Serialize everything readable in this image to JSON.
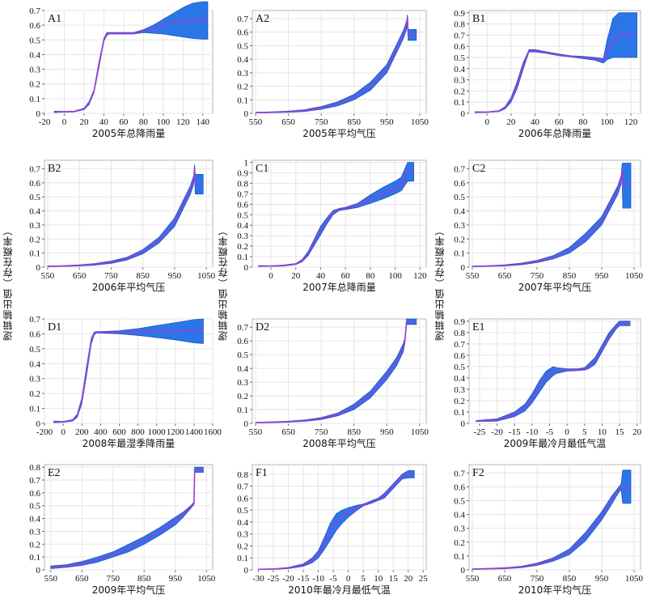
{
  "figure": {
    "y_axis_label": "逻辑输出值（存在概率）",
    "band_color": "#1f6fe8",
    "band_edge_color": "#1a56c4",
    "line_color": "#9a3fd6"
  },
  "chart_data": [
    {
      "panel": "A1",
      "type": "area",
      "xlabel": "2005年总降雨量",
      "xlim": [
        -20,
        150
      ],
      "ylim": [
        0,
        0.7
      ],
      "xticks": [
        -20,
        0,
        20,
        40,
        60,
        80,
        100,
        120,
        140
      ],
      "yticks": [
        0,
        0.1,
        0.2,
        0.3,
        0.4,
        0.5,
        0.6,
        0.7
      ],
      "x": [
        -10,
        0,
        10,
        20,
        25,
        30,
        35,
        40,
        43,
        45,
        50,
        60,
        70,
        80,
        90,
        100,
        110,
        120,
        130,
        140,
        145
      ],
      "mean": [
        0.01,
        0.01,
        0.012,
        0.03,
        0.07,
        0.15,
        0.33,
        0.5,
        0.54,
        0.545,
        0.545,
        0.545,
        0.545,
        0.56,
        0.58,
        0.6,
        0.615,
        0.625,
        0.635,
        0.64,
        0.64
      ],
      "lower": [
        0.005,
        0.008,
        0.01,
        0.025,
        0.06,
        0.14,
        0.31,
        0.49,
        0.53,
        0.54,
        0.54,
        0.54,
        0.54,
        0.55,
        0.545,
        0.54,
        0.53,
        0.52,
        0.51,
        0.505,
        0.505
      ],
      "upper": [
        0.015,
        0.013,
        0.015,
        0.035,
        0.08,
        0.16,
        0.35,
        0.51,
        0.55,
        0.55,
        0.55,
        0.55,
        0.55,
        0.57,
        0.6,
        0.64,
        0.68,
        0.72,
        0.75,
        0.76,
        0.76
      ]
    },
    {
      "panel": "A2",
      "type": "area",
      "xlabel": "2005年平均气压",
      "xlim": [
        540,
        1070
      ],
      "ylim": [
        0,
        0.76
      ],
      "xticks": [
        550,
        650,
        750,
        850,
        950,
        1050
      ],
      "yticks": [
        0,
        0.1,
        0.2,
        0.3,
        0.4,
        0.5,
        0.6,
        0.7
      ],
      "x": [
        550,
        600,
        650,
        700,
        750,
        800,
        850,
        900,
        950,
        1000,
        1010,
        1013,
        1015,
        1030,
        1040
      ],
      "mean": [
        0.005,
        0.008,
        0.012,
        0.02,
        0.04,
        0.07,
        0.12,
        0.2,
        0.33,
        0.58,
        0.65,
        0.7,
        0.58,
        0.58,
        0.58
      ],
      "lower": [
        0.003,
        0.005,
        0.008,
        0.014,
        0.03,
        0.055,
        0.1,
        0.17,
        0.3,
        0.55,
        0.62,
        0.66,
        0.54,
        0.54,
        0.54
      ],
      "upper": [
        0.007,
        0.011,
        0.016,
        0.027,
        0.05,
        0.085,
        0.14,
        0.23,
        0.36,
        0.61,
        0.68,
        0.73,
        0.62,
        0.62,
        0.62
      ]
    },
    {
      "panel": "B1",
      "type": "area",
      "xlabel": "2006年总降雨量",
      "xlim": [
        -15,
        128
      ],
      "ylim": [
        0,
        0.92
      ],
      "xticks": [
        0,
        20,
        40,
        60,
        80,
        100,
        120
      ],
      "yticks": [
        0,
        0.1,
        0.2,
        0.3,
        0.4,
        0.5,
        0.6,
        0.7,
        0.8,
        0.9
      ],
      "x": [
        -10,
        0,
        10,
        15,
        20,
        25,
        30,
        35,
        40,
        50,
        60,
        70,
        80,
        90,
        97,
        100,
        105,
        110,
        120,
        125
      ],
      "mean": [
        0.01,
        0.01,
        0.02,
        0.05,
        0.12,
        0.25,
        0.42,
        0.56,
        0.56,
        0.54,
        0.52,
        0.51,
        0.5,
        0.49,
        0.47,
        0.55,
        0.65,
        0.7,
        0.7,
        0.7
      ],
      "lower": [
        0.005,
        0.008,
        0.015,
        0.04,
        0.1,
        0.22,
        0.39,
        0.55,
        0.55,
        0.535,
        0.515,
        0.505,
        0.49,
        0.475,
        0.45,
        0.48,
        0.5,
        0.5,
        0.5,
        0.5
      ],
      "upper": [
        0.015,
        0.012,
        0.025,
        0.06,
        0.14,
        0.28,
        0.45,
        0.57,
        0.57,
        0.55,
        0.53,
        0.515,
        0.51,
        0.5,
        0.49,
        0.65,
        0.85,
        0.9,
        0.9,
        0.9
      ]
    },
    {
      "panel": "B2",
      "type": "area",
      "xlabel": "2006年平均气压",
      "xlim": [
        540,
        1070
      ],
      "ylim": [
        0,
        0.76
      ],
      "xticks": [
        550,
        650,
        750,
        850,
        950,
        1050
      ],
      "yticks": [
        0,
        0.1,
        0.2,
        0.3,
        0.4,
        0.5,
        0.6,
        0.7
      ],
      "x": [
        550,
        600,
        650,
        700,
        750,
        800,
        850,
        900,
        950,
        1000,
        1010,
        1013,
        1015,
        1030,
        1040
      ],
      "mean": [
        0.005,
        0.008,
        0.012,
        0.02,
        0.035,
        0.06,
        0.11,
        0.19,
        0.32,
        0.55,
        0.62,
        0.7,
        0.59,
        0.59,
        0.59
      ],
      "lower": [
        0.003,
        0.005,
        0.008,
        0.014,
        0.027,
        0.05,
        0.095,
        0.17,
        0.29,
        0.52,
        0.59,
        0.66,
        0.52,
        0.52,
        0.52
      ],
      "upper": [
        0.007,
        0.011,
        0.016,
        0.026,
        0.043,
        0.07,
        0.125,
        0.21,
        0.35,
        0.58,
        0.65,
        0.73,
        0.66,
        0.66,
        0.66
      ]
    },
    {
      "panel": "C1",
      "type": "area",
      "xlabel": "2007年总降雨量",
      "xlim": [
        -15,
        125
      ],
      "ylim": [
        0,
        1.02
      ],
      "xticks": [
        0,
        20,
        40,
        60,
        80,
        100,
        120
      ],
      "yticks": [
        0,
        0.1,
        0.2,
        0.3,
        0.4,
        0.5,
        0.6,
        0.7,
        0.8,
        0.9,
        1.0
      ],
      "x": [
        -10,
        0,
        10,
        20,
        25,
        30,
        35,
        40,
        45,
        50,
        55,
        60,
        70,
        80,
        90,
        100,
        105,
        110,
        115
      ],
      "mean": [
        0.01,
        0.01,
        0.015,
        0.03,
        0.06,
        0.13,
        0.24,
        0.35,
        0.44,
        0.52,
        0.55,
        0.56,
        0.59,
        0.65,
        0.7,
        0.75,
        0.78,
        0.92,
        0.92
      ],
      "lower": [
        0.005,
        0.007,
        0.01,
        0.025,
        0.05,
        0.11,
        0.21,
        0.31,
        0.41,
        0.5,
        0.54,
        0.55,
        0.57,
        0.61,
        0.65,
        0.7,
        0.73,
        0.82,
        0.82
      ],
      "upper": [
        0.015,
        0.013,
        0.02,
        0.035,
        0.07,
        0.15,
        0.27,
        0.39,
        0.47,
        0.54,
        0.56,
        0.57,
        0.61,
        0.69,
        0.76,
        0.82,
        0.86,
        1.0,
        1.0
      ]
    },
    {
      "panel": "C2",
      "type": "area",
      "xlabel": "2007年平均气压",
      "xlim": [
        540,
        1070
      ],
      "ylim": [
        0,
        0.76
      ],
      "xticks": [
        550,
        650,
        750,
        850,
        950,
        1050
      ],
      "yticks": [
        0,
        0.1,
        0.2,
        0.3,
        0.4,
        0.5,
        0.6,
        0.7
      ],
      "x": [
        550,
        600,
        650,
        700,
        750,
        800,
        850,
        900,
        950,
        1000,
        1010,
        1013,
        1015,
        1030,
        1040
      ],
      "mean": [
        0.005,
        0.008,
        0.012,
        0.022,
        0.04,
        0.07,
        0.12,
        0.21,
        0.33,
        0.55,
        0.62,
        0.7,
        0.58,
        0.58,
        0.58
      ],
      "lower": [
        0.003,
        0.005,
        0.008,
        0.016,
        0.032,
        0.058,
        0.1,
        0.18,
        0.3,
        0.52,
        0.59,
        0.66,
        0.42,
        0.42,
        0.42
      ],
      "upper": [
        0.007,
        0.011,
        0.016,
        0.028,
        0.048,
        0.082,
        0.14,
        0.24,
        0.36,
        0.58,
        0.65,
        0.73,
        0.74,
        0.74,
        0.74
      ]
    },
    {
      "panel": "D1",
      "type": "area",
      "xlabel": "2008年最湿季降雨量",
      "xlim": [
        -200,
        1600
      ],
      "ylim": [
        0,
        0.7
      ],
      "xticks": [
        -200,
        0,
        200,
        400,
        600,
        800,
        1000,
        1200,
        1400,
        1600
      ],
      "yticks": [
        0,
        0.1,
        0.2,
        0.3,
        0.4,
        0.5,
        0.6,
        0.7
      ],
      "x": [
        -100,
        0,
        100,
        150,
        200,
        250,
        300,
        330,
        350,
        400,
        600,
        800,
        1000,
        1200,
        1400,
        1500
      ],
      "mean": [
        0.01,
        0.01,
        0.02,
        0.05,
        0.15,
        0.35,
        0.55,
        0.6,
        0.61,
        0.61,
        0.61,
        0.612,
        0.615,
        0.617,
        0.618,
        0.618
      ],
      "lower": [
        0.005,
        0.007,
        0.015,
        0.04,
        0.13,
        0.32,
        0.53,
        0.59,
        0.605,
        0.605,
        0.6,
        0.59,
        0.575,
        0.56,
        0.54,
        0.535
      ],
      "upper": [
        0.015,
        0.013,
        0.025,
        0.06,
        0.17,
        0.38,
        0.57,
        0.61,
        0.615,
        0.615,
        0.62,
        0.635,
        0.655,
        0.675,
        0.695,
        0.7
      ]
    },
    {
      "panel": "D2",
      "type": "area",
      "xlabel": "2008年平均气压",
      "xlim": [
        540,
        1070
      ],
      "ylim": [
        0,
        0.76
      ],
      "xticks": [
        550,
        650,
        750,
        850,
        950,
        1050
      ],
      "yticks": [
        0,
        0.1,
        0.2,
        0.3,
        0.4,
        0.5,
        0.6,
        0.7
      ],
      "x": [
        550,
        600,
        650,
        700,
        750,
        800,
        850,
        900,
        950,
        980,
        1000,
        1005,
        1010,
        1040
      ],
      "mean": [
        0.005,
        0.008,
        0.012,
        0.02,
        0.035,
        0.065,
        0.12,
        0.21,
        0.35,
        0.45,
        0.55,
        0.6,
        0.74,
        0.74
      ],
      "lower": [
        0.003,
        0.005,
        0.008,
        0.015,
        0.028,
        0.055,
        0.1,
        0.185,
        0.32,
        0.42,
        0.52,
        0.58,
        0.72,
        0.72
      ],
      "upper": [
        0.007,
        0.011,
        0.016,
        0.025,
        0.042,
        0.075,
        0.14,
        0.235,
        0.38,
        0.48,
        0.58,
        0.62,
        0.76,
        0.76
      ]
    },
    {
      "panel": "E1",
      "type": "area",
      "xlabel": "2009年最冷月最低气温",
      "xlim": [
        -28,
        21
      ],
      "ylim": [
        0,
        0.92
      ],
      "xticks": [
        -25,
        -20,
        -15,
        -10,
        -5,
        0,
        5,
        10,
        15,
        20
      ],
      "yticks": [
        0,
        0.1,
        0.2,
        0.3,
        0.4,
        0.5,
        0.6,
        0.7,
        0.8,
        0.9
      ],
      "x": [
        -26,
        -20,
        -15,
        -12,
        -10,
        -8,
        -6,
        -4,
        -3,
        0,
        3,
        5,
        6,
        8,
        10,
        12,
        14,
        15,
        18
      ],
      "mean": [
        0.02,
        0.03,
        0.08,
        0.14,
        0.22,
        0.32,
        0.41,
        0.46,
        0.46,
        0.47,
        0.47,
        0.48,
        0.5,
        0.55,
        0.66,
        0.77,
        0.85,
        0.88,
        0.88
      ],
      "lower": [
        0.015,
        0.02,
        0.06,
        0.11,
        0.18,
        0.27,
        0.36,
        0.42,
        0.44,
        0.46,
        0.465,
        0.47,
        0.48,
        0.52,
        0.63,
        0.74,
        0.83,
        0.86,
        0.86
      ],
      "upper": [
        0.025,
        0.04,
        0.1,
        0.17,
        0.26,
        0.37,
        0.46,
        0.5,
        0.49,
        0.48,
        0.48,
        0.49,
        0.52,
        0.58,
        0.69,
        0.8,
        0.87,
        0.9,
        0.9
      ]
    },
    {
      "panel": "E2",
      "type": "area",
      "xlabel": "2009年平均气压",
      "xlim": [
        530,
        1070
      ],
      "ylim": [
        0,
        0.82
      ],
      "xticks": [
        550,
        650,
        750,
        850,
        950,
        1050
      ],
      "yticks": [
        0,
        0.1,
        0.2,
        0.3,
        0.4,
        0.5,
        0.6,
        0.7,
        0.8
      ],
      "x": [
        550,
        600,
        650,
        700,
        750,
        800,
        850,
        900,
        950,
        975,
        1000,
        1010,
        1012,
        1040
      ],
      "mean": [
        0.02,
        0.03,
        0.05,
        0.08,
        0.12,
        0.17,
        0.23,
        0.3,
        0.38,
        0.43,
        0.49,
        0.52,
        0.78,
        0.78
      ],
      "lower": [
        0.01,
        0.02,
        0.035,
        0.06,
        0.1,
        0.14,
        0.2,
        0.27,
        0.35,
        0.41,
        0.48,
        0.51,
        0.76,
        0.76
      ],
      "upper": [
        0.03,
        0.04,
        0.065,
        0.1,
        0.14,
        0.2,
        0.26,
        0.33,
        0.41,
        0.45,
        0.5,
        0.53,
        0.8,
        0.8
      ]
    },
    {
      "panel": "F1",
      "type": "area",
      "xlabel": "2010年最冷月最低气温",
      "xlim": [
        -32,
        26
      ],
      "ylim": [
        0,
        0.88
      ],
      "xticks": [
        -30,
        -25,
        -20,
        -15,
        -10,
        -5,
        0,
        5,
        10,
        15,
        20,
        25
      ],
      "yticks": [
        0,
        0.1,
        0.2,
        0.3,
        0.4,
        0.5,
        0.6,
        0.7,
        0.8
      ],
      "x": [
        -30,
        -25,
        -20,
        -15,
        -12,
        -10,
        -8,
        -6,
        -4,
        -2,
        0,
        3,
        5,
        8,
        10,
        12,
        15,
        18,
        20,
        22
      ],
      "mean": [
        0.005,
        0.007,
        0.015,
        0.04,
        0.08,
        0.13,
        0.22,
        0.32,
        0.4,
        0.45,
        0.48,
        0.52,
        0.54,
        0.57,
        0.59,
        0.62,
        0.7,
        0.78,
        0.8,
        0.8
      ],
      "lower": [
        0.003,
        0.005,
        0.01,
        0.03,
        0.06,
        0.1,
        0.17,
        0.25,
        0.33,
        0.39,
        0.44,
        0.5,
        0.535,
        0.56,
        0.58,
        0.6,
        0.68,
        0.76,
        0.77,
        0.77
      ],
      "upper": [
        0.007,
        0.01,
        0.02,
        0.05,
        0.1,
        0.16,
        0.27,
        0.39,
        0.47,
        0.5,
        0.52,
        0.54,
        0.55,
        0.58,
        0.6,
        0.64,
        0.72,
        0.8,
        0.83,
        0.83
      ]
    },
    {
      "panel": "F2",
      "type": "area",
      "xlabel": "2010年平均气压",
      "xlim": [
        540,
        1070
      ],
      "ylim": [
        0,
        0.76
      ],
      "xticks": [
        550,
        650,
        750,
        850,
        950,
        1050
      ],
      "yticks": [
        0,
        0.1,
        0.2,
        0.3,
        0.4,
        0.5,
        0.6,
        0.7
      ],
      "x": [
        550,
        600,
        650,
        700,
        750,
        800,
        850,
        900,
        950,
        980,
        1000,
        1010,
        1015,
        1040
      ],
      "mean": [
        0.005,
        0.008,
        0.012,
        0.02,
        0.04,
        0.075,
        0.13,
        0.24,
        0.39,
        0.5,
        0.57,
        0.6,
        0.6,
        0.6
      ],
      "lower": [
        0.003,
        0.005,
        0.008,
        0.015,
        0.032,
        0.063,
        0.11,
        0.21,
        0.36,
        0.47,
        0.55,
        0.58,
        0.48,
        0.48
      ],
      "upper": [
        0.007,
        0.011,
        0.016,
        0.025,
        0.048,
        0.087,
        0.15,
        0.27,
        0.42,
        0.53,
        0.59,
        0.62,
        0.72,
        0.72
      ]
    }
  ]
}
